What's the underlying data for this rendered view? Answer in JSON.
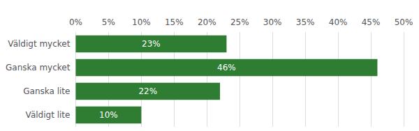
{
  "chart_data": {
    "type": "bar",
    "orientation": "horizontal",
    "categories": [
      "Väldigt mycket",
      "Ganska mycket",
      "Ganska lite",
      "Väldigt lite"
    ],
    "values": [
      23,
      46,
      22,
      10
    ],
    "value_labels": [
      "23%",
      "46%",
      "22%",
      "10%"
    ],
    "data_labels": true,
    "color": "#2e7d32",
    "xlim": [
      0,
      50
    ],
    "xticks": [
      {
        "value": 0,
        "label": "0%"
      },
      {
        "value": 5,
        "label": "5%"
      },
      {
        "value": 10,
        "label": "10%"
      },
      {
        "value": 15,
        "label": "15%"
      },
      {
        "value": 20,
        "label": "20%"
      },
      {
        "value": 25,
        "label": "25%"
      },
      {
        "value": 30,
        "label": "30%"
      },
      {
        "value": 35,
        "label": "35%"
      },
      {
        "value": 40,
        "label": "40%"
      },
      {
        "value": 45,
        "label": "45%"
      },
      {
        "value": 50,
        "label": "50%"
      }
    ],
    "grid": true
  }
}
